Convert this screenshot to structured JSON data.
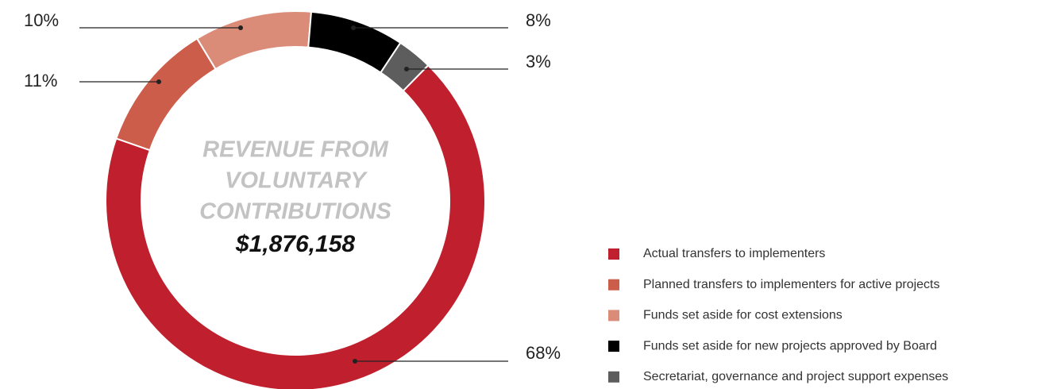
{
  "chart_data": {
    "type": "donut",
    "center_label": [
      "REVENUE FROM",
      "VOLUNTARY",
      "CONTRIBUTIONS"
    ],
    "total_label": "$1,876,158",
    "categories": [
      "Actual transfers to implementers",
      "Planned transfers to implementers for active projects",
      "Funds set aside for cost extensions",
      "Funds set aside for new projects approved by Board",
      "Secretariat, governance and project support expenses"
    ],
    "values": [
      68,
      11,
      10,
      8,
      3
    ],
    "value_labels": [
      "68%",
      "11%",
      "10%",
      "8%",
      "3%"
    ],
    "colors": [
      "#c01f2d",
      "#cc5d4b",
      "#da8c78",
      "#000000",
      "#5d5d5d"
    ],
    "legend": "right"
  }
}
